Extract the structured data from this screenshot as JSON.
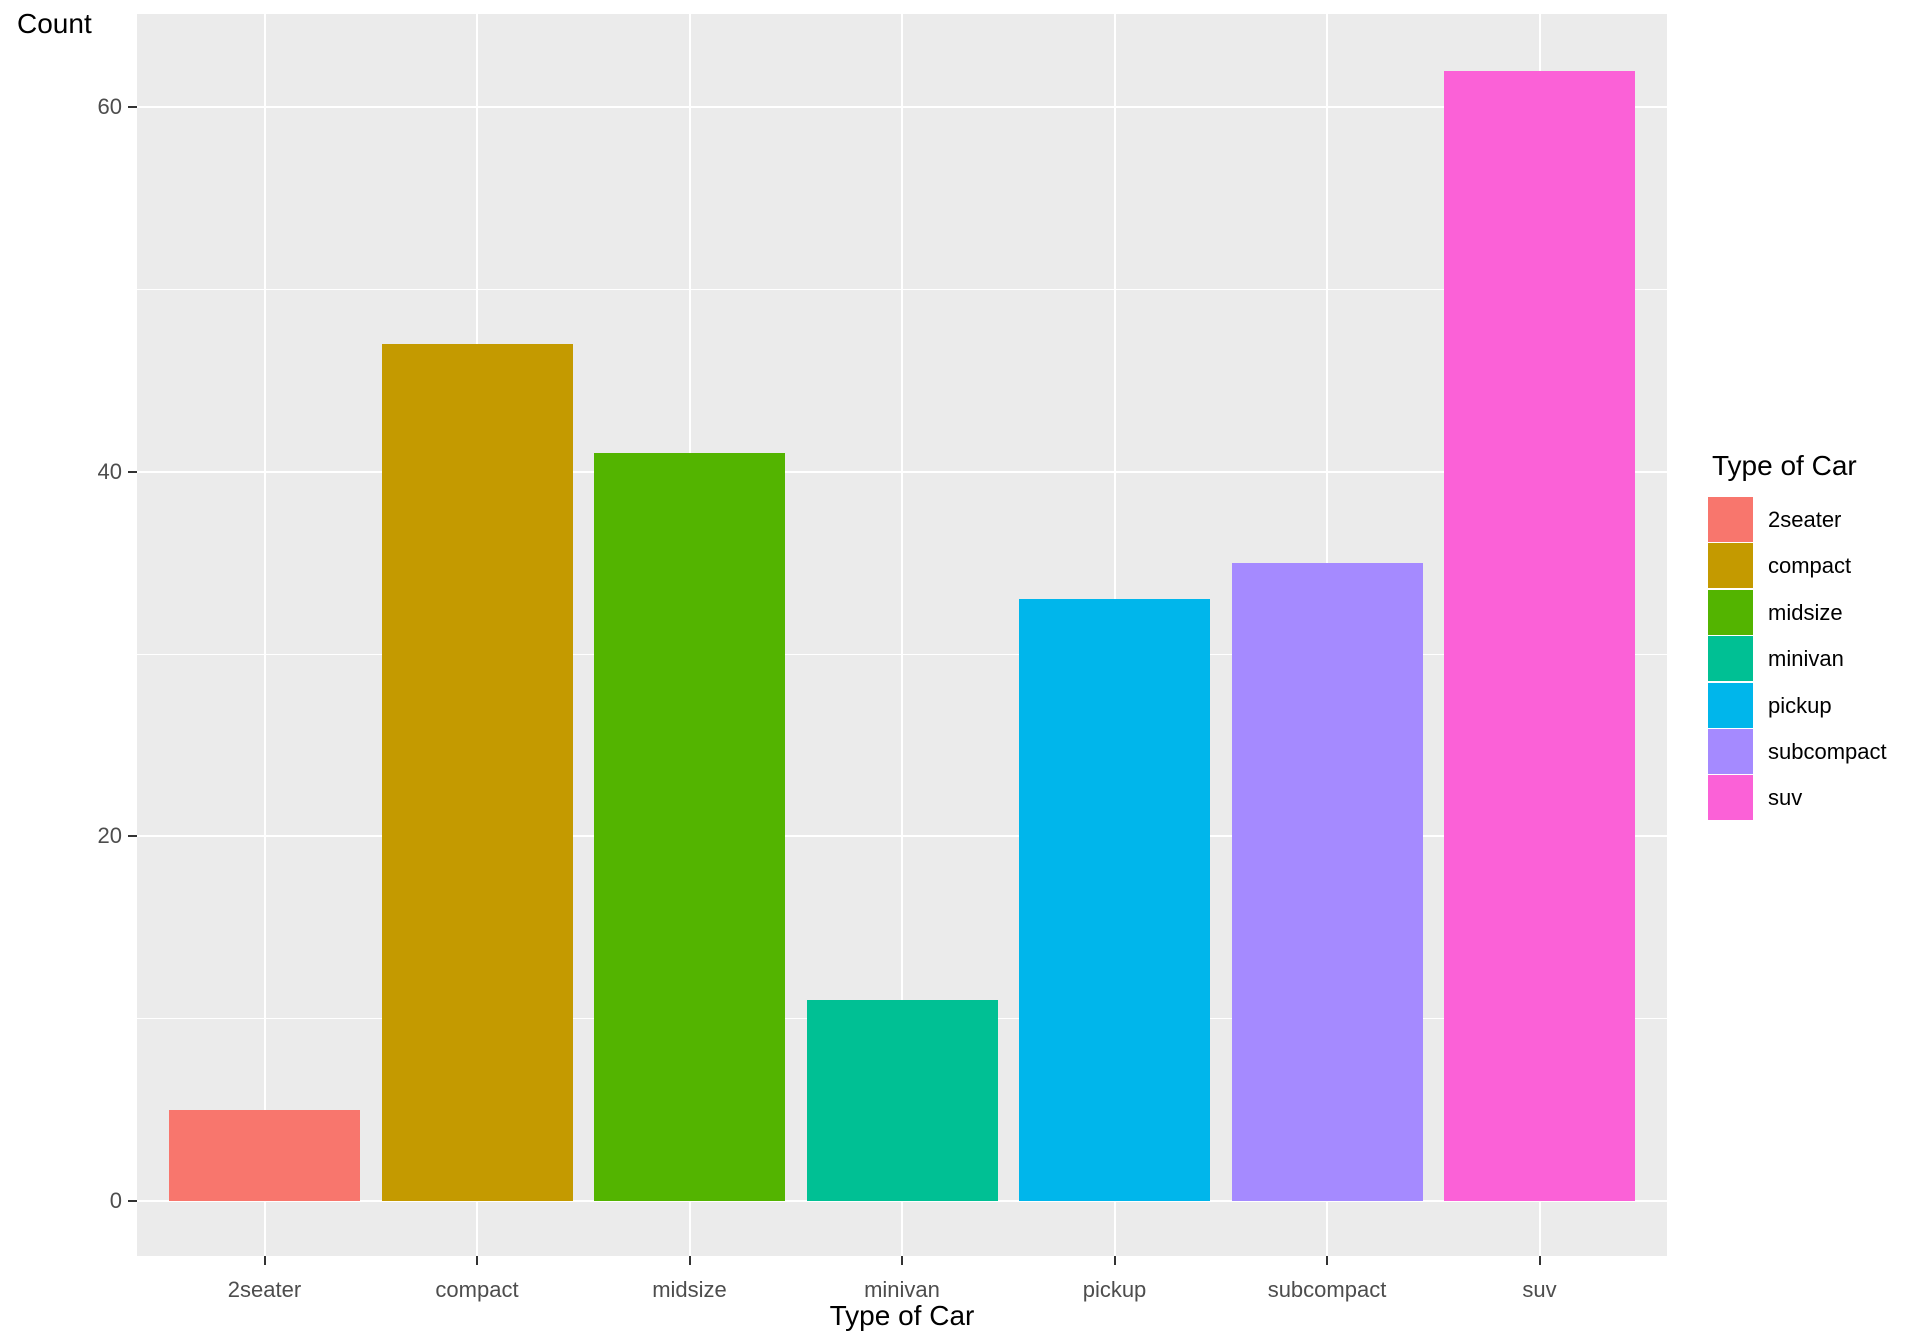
{
  "chart": {
    "y_axis_title": "Count",
    "x_axis_title": "Type of Car",
    "legend_title": "Type of Car"
  },
  "chart_data": {
    "type": "bar",
    "title": "",
    "xlabel": "Type of Car",
    "ylabel": "Count",
    "categories": [
      "2seater",
      "compact",
      "midsize",
      "minivan",
      "pickup",
      "subcompact",
      "suv"
    ],
    "values": [
      5,
      47,
      41,
      11,
      33,
      35,
      62
    ],
    "bar_colors": [
      "#F8766D",
      "#C49A00",
      "#53B400",
      "#00C094",
      "#00B6EB",
      "#A58AFF",
      "#FB61D7"
    ],
    "ylim": [
      -3.1,
      65.1
    ],
    "y_major_ticks": [
      0,
      20,
      40,
      60
    ],
    "y_minor_ticks": [
      10,
      30,
      50
    ],
    "grid": "on",
    "legend_position": "right",
    "legend_entries": [
      {
        "label": "2seater",
        "color": "#F8766D"
      },
      {
        "label": "compact",
        "color": "#C49A00"
      },
      {
        "label": "midsize",
        "color": "#53B400"
      },
      {
        "label": "minivan",
        "color": "#00C094"
      },
      {
        "label": "pickup",
        "color": "#00B6EB"
      },
      {
        "label": "subcompact",
        "color": "#A58AFF"
      },
      {
        "label": "suv",
        "color": "#FB61D7"
      }
    ],
    "style": {
      "panel_bg": "#EBEBEB",
      "grid_color": "#FFFFFF",
      "tick_color": "#333333",
      "axis_text_color": "#4D4D4D",
      "title_text_color": "#000000",
      "background": "#FFFFFF"
    }
  }
}
